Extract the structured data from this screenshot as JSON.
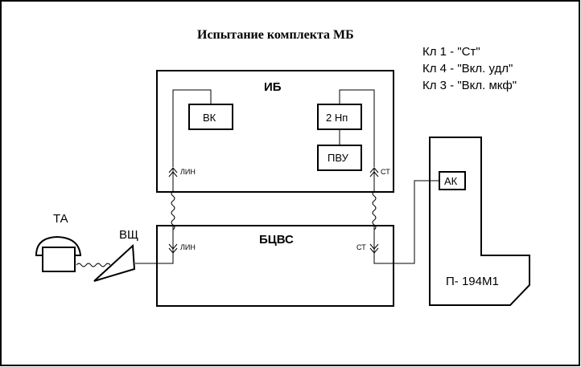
{
  "title": "Испытание комплекта МБ",
  "legend": [
    "Кл 1 - \"Ст\"",
    "Кл 4 - \"Вкл. удл\"",
    "Кл 3 - \"Вкл. мкф\""
  ],
  "blocks": {
    "ib": "ИБ",
    "vk": "ВК",
    "np": "2 Нп",
    "pvu": "ПВУ",
    "bcvs": "БЦВС",
    "ak": "АК",
    "p194": "П- 194М1",
    "ta": "ТА",
    "vsch": "ВЩ"
  },
  "connectors": {
    "ib_lin": "ЛИН",
    "ib_st": "СТ",
    "bcvs_lin": "ЛИН",
    "bcvs_st": "СТ"
  }
}
